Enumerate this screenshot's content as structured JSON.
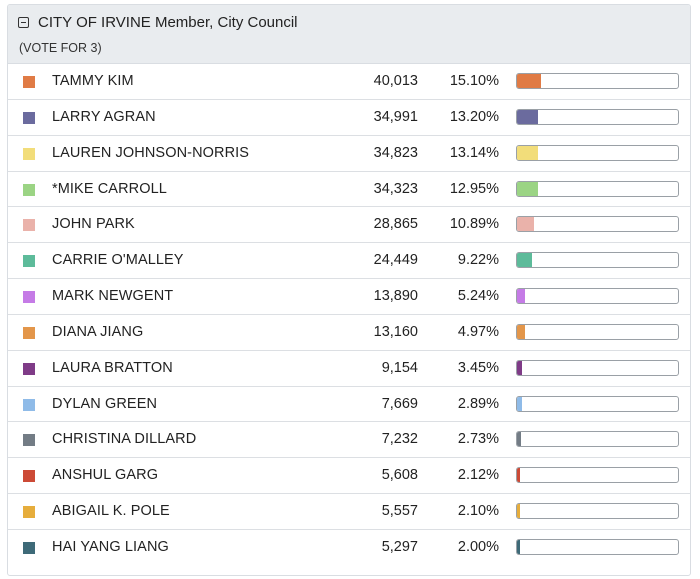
{
  "contest": {
    "title": "CITY OF IRVINE Member, City Council",
    "subtitle": "(VOTE FOR 3)"
  },
  "candidates": [
    {
      "name": "TAMMY KIM",
      "votes": "40,013",
      "percent": "15.10%",
      "share": 0.151,
      "color": "#e07b45"
    },
    {
      "name": "LARRY AGRAN",
      "votes": "34,991",
      "percent": "13.20%",
      "share": 0.132,
      "color": "#6b6b9e"
    },
    {
      "name": "LAUREN JOHNSON-NORRIS",
      "votes": "34,823",
      "percent": "13.14%",
      "share": 0.1314,
      "color": "#f2dd7a"
    },
    {
      "name": "*MIKE CARROLL",
      "votes": "34,323",
      "percent": "12.95%",
      "share": 0.1295,
      "color": "#9bd484"
    },
    {
      "name": "JOHN PARK",
      "votes": "28,865",
      "percent": "10.89%",
      "share": 0.1089,
      "color": "#eab2aa"
    },
    {
      "name": "CARRIE O'MALLEY",
      "votes": "24,449",
      "percent": "9.22%",
      "share": 0.0922,
      "color": "#5dbb9a"
    },
    {
      "name": "MARK NEWGENT",
      "votes": "13,890",
      "percent": "5.24%",
      "share": 0.0524,
      "color": "#c57be6"
    },
    {
      "name": "DIANA JIANG",
      "votes": "13,160",
      "percent": "4.97%",
      "share": 0.0497,
      "color": "#e3964a"
    },
    {
      "name": "LAURA BRATTON",
      "votes": "9,154",
      "percent": "3.45%",
      "share": 0.0345,
      "color": "#7f3b87"
    },
    {
      "name": "DYLAN GREEN",
      "votes": "7,669",
      "percent": "2.89%",
      "share": 0.0289,
      "color": "#8fbbe8"
    },
    {
      "name": "CHRISTINA DILLARD",
      "votes": "7,232",
      "percent": "2.73%",
      "share": 0.0273,
      "color": "#737c85"
    },
    {
      "name": "ANSHUL GARG",
      "votes": "5,608",
      "percent": "2.12%",
      "share": 0.0212,
      "color": "#cc4a36"
    },
    {
      "name": "ABIGAIL K. POLE",
      "votes": "5,557",
      "percent": "2.10%",
      "share": 0.021,
      "color": "#e6ad3c"
    },
    {
      "name": "HAI YANG LIANG",
      "votes": "5,297",
      "percent": "2.00%",
      "share": 0.02,
      "color": "#3e6a78"
    }
  ]
}
